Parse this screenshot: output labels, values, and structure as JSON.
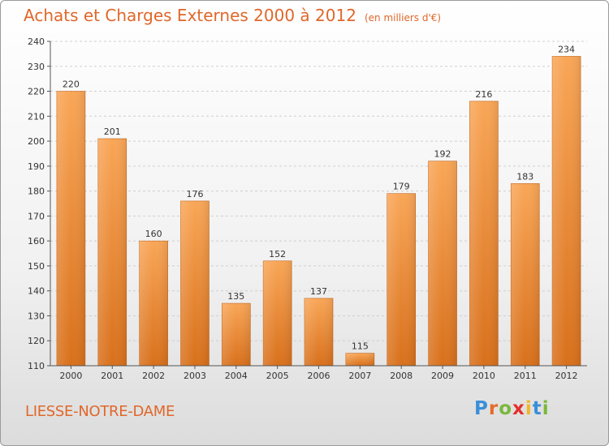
{
  "chart_data": {
    "type": "bar",
    "title": "Achats et Charges Externes 2000 à 2012",
    "subtitle": "(en milliers d'€)",
    "categories": [
      "2000",
      "2001",
      "2002",
      "2003",
      "2004",
      "2005",
      "2006",
      "2007",
      "2008",
      "2009",
      "2010",
      "2011",
      "2012"
    ],
    "values": [
      220,
      201,
      160,
      176,
      135,
      152,
      137,
      115,
      179,
      192,
      216,
      183,
      234
    ],
    "ylim": [
      110,
      240
    ],
    "yticks": [
      110,
      120,
      130,
      140,
      150,
      160,
      170,
      180,
      190,
      200,
      210,
      220,
      230,
      240
    ],
    "grid": true,
    "bar_color": "#f08a2c"
  },
  "commune": "LIESSE-NOTRE-DAME",
  "logo": {
    "letters": [
      "P",
      "r",
      "o",
      "x",
      "i",
      "t",
      "i"
    ],
    "colors": [
      "#3a8fd8",
      "#e36b2c",
      "#7ab83a",
      "#e3302c",
      "#f0b62a",
      "#3a8fd8",
      "#7ab83a"
    ]
  }
}
